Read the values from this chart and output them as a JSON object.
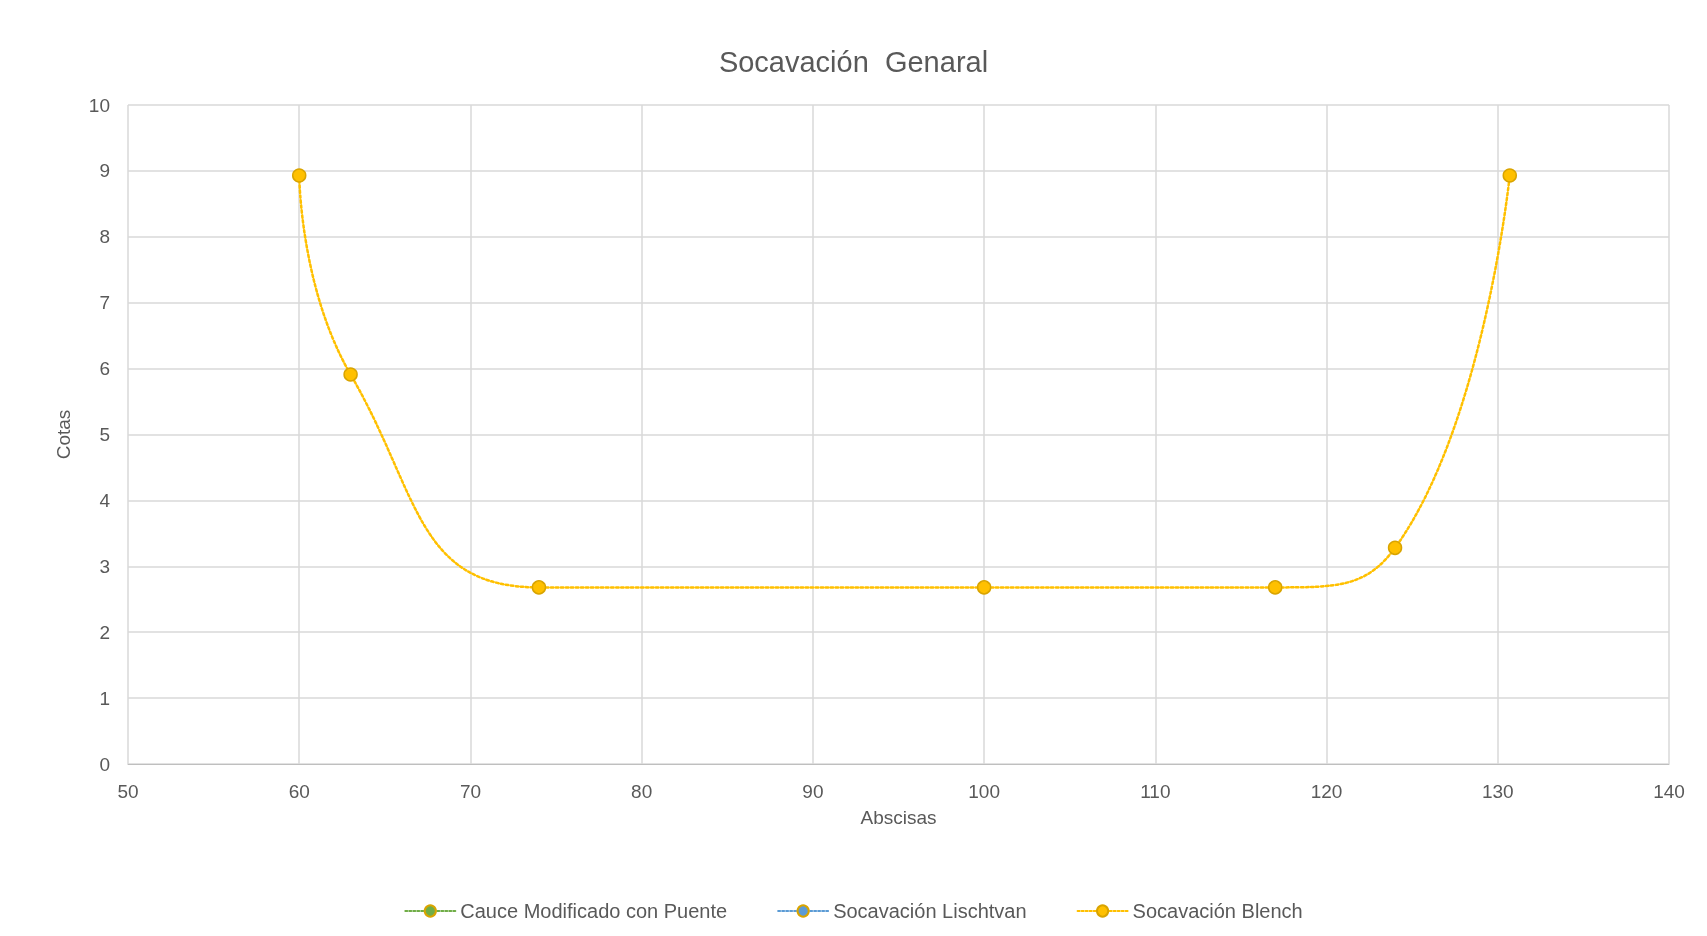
{
  "chart_data": {
    "type": "line",
    "title": "Socavación  Genaral",
    "xlabel": "Abscisas",
    "ylabel": "Cotas",
    "xlim": [
      50,
      140
    ],
    "xticks": [
      50,
      60,
      70,
      80,
      90,
      100,
      110,
      120,
      130,
      140
    ],
    "ylim": [
      0,
      10
    ],
    "yticks": [
      0,
      1,
      2,
      3,
      4,
      5,
      6,
      7,
      8,
      9,
      10
    ],
    "grid": true,
    "legend": "bottom",
    "marker": "circle",
    "line_style": "dotted",
    "x": [
      60,
      63,
      74,
      100,
      117,
      124,
      130.7
    ],
    "series": [
      {
        "name": "Cauce Modificado con Puente",
        "color": "#70ad47",
        "values": [
          null,
          null,
          null,
          null,
          null,
          null,
          null
        ]
      },
      {
        "name": "Socavación Lischtvan",
        "color": "#5b9bd5",
        "values": [
          null,
          null,
          null,
          null,
          null,
          null,
          null
        ]
      },
      {
        "name": "Socavación Blench",
        "color": "#ffc000",
        "values": [
          8.93,
          5.91,
          2.68,
          2.68,
          2.68,
          3.28,
          8.93
        ]
      }
    ]
  }
}
